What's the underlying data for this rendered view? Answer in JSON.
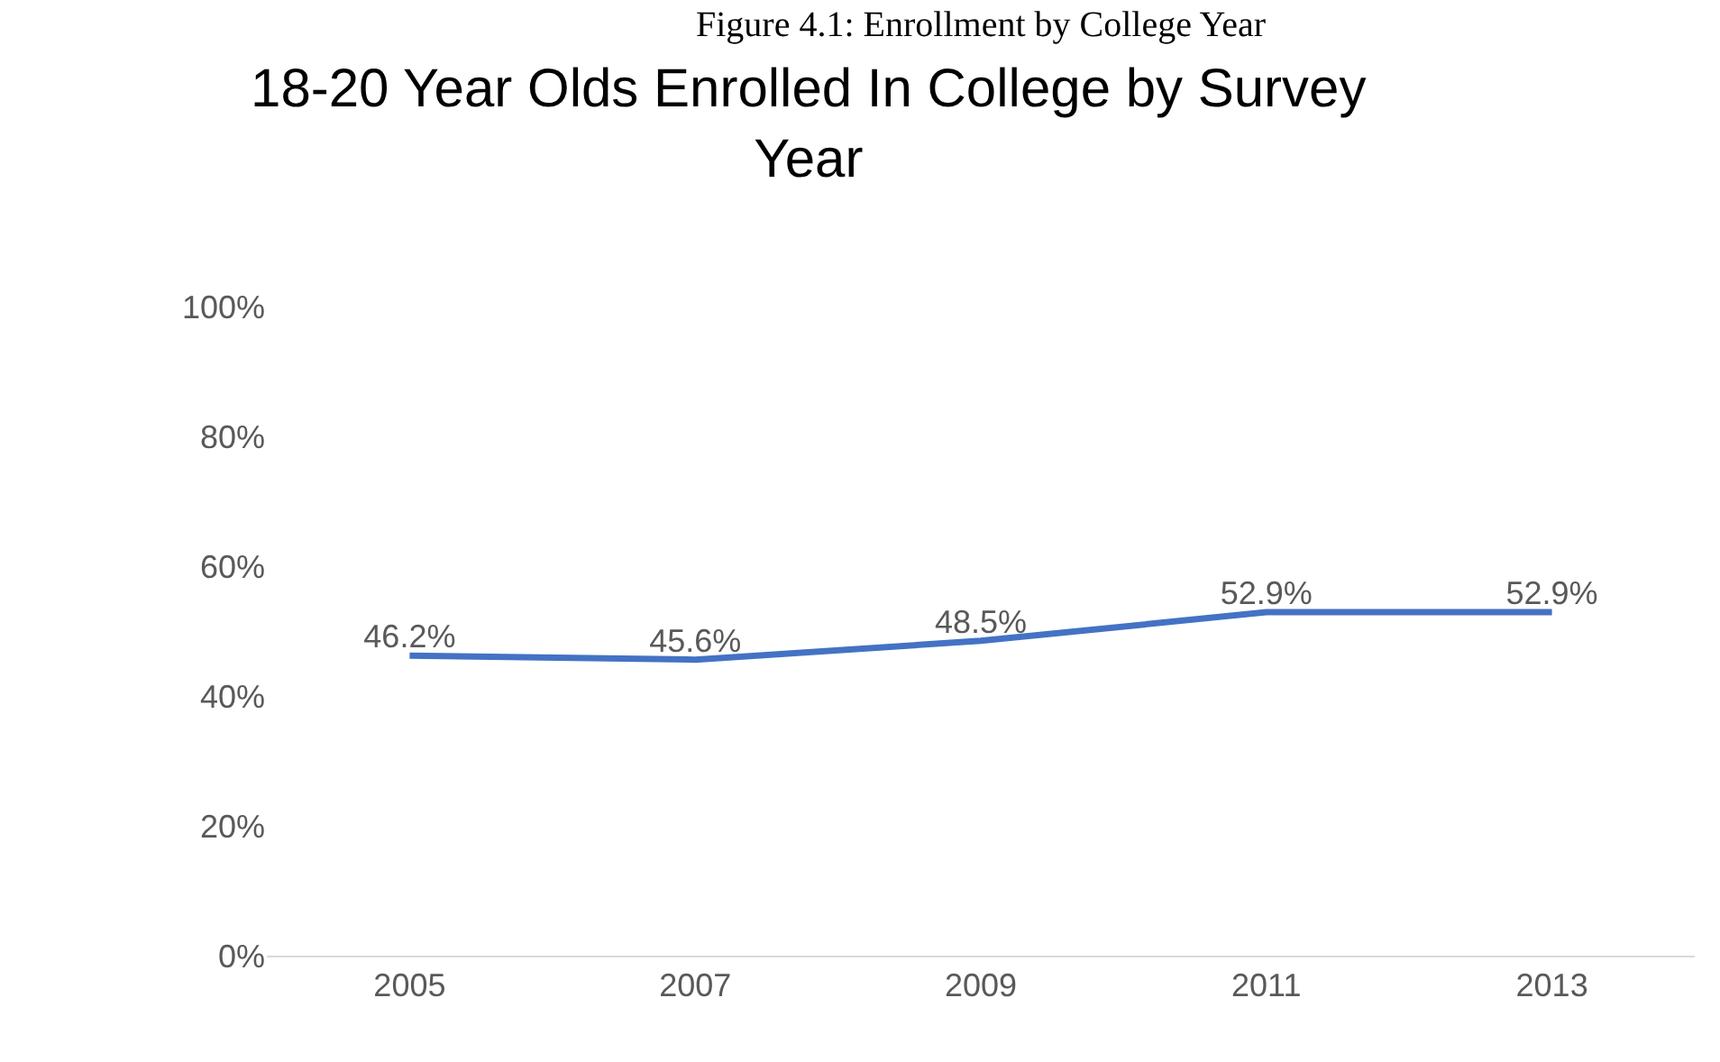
{
  "chart_data": {
    "type": "line",
    "title": "18-20 Year Olds Enrolled In College by Survey Year",
    "categories": [
      "2005",
      "2007",
      "2009",
      "2011",
      "2013"
    ],
    "series": [
      {
        "color": "#4472c4",
        "values": [
          46.2,
          45.6,
          48.5,
          52.9,
          52.9
        ],
        "value_labels": [
          "46.2%",
          "45.6%",
          "48.5%",
          "52.9%",
          "52.9%"
        ]
      }
    ],
    "ylim": [
      0,
      100
    ],
    "yticks": [
      {
        "value": 0,
        "label": "0%"
      },
      {
        "value": 20,
        "label": "20%"
      },
      {
        "value": 40,
        "label": "40%"
      },
      {
        "value": 60,
        "label": "60%"
      },
      {
        "value": 80,
        "label": "80%"
      },
      {
        "value": 100,
        "label": "100%"
      }
    ],
    "annotations": [
      "Figure 4.1: Enrollment by College Year"
    ],
    "marker": "none",
    "line_style": "solid"
  }
}
